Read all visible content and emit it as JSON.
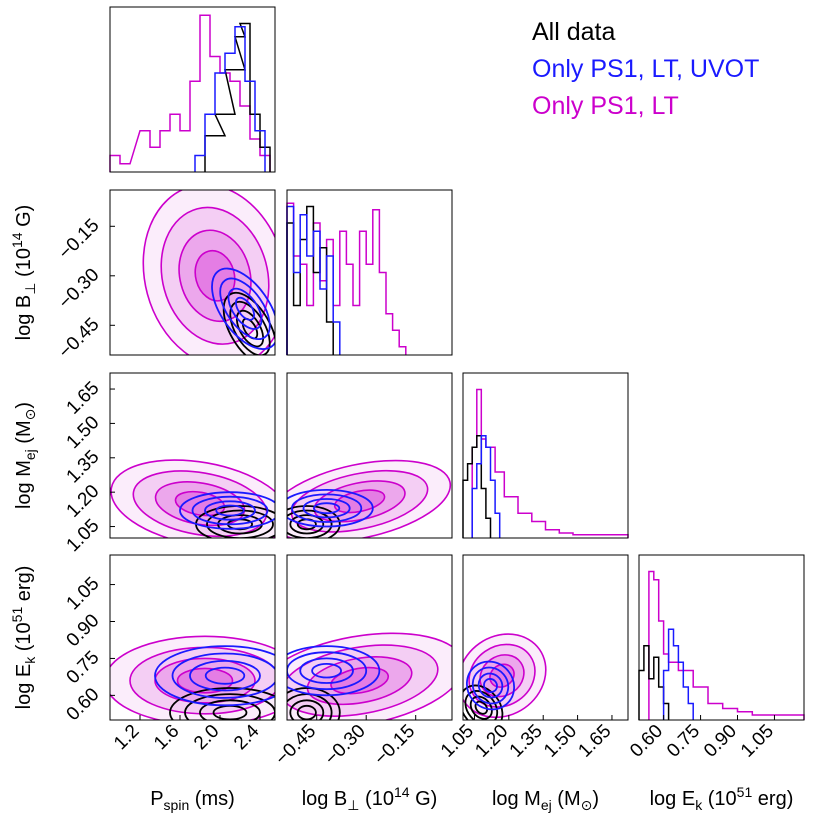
{
  "chart_data": {
    "type": "corner",
    "params": [
      {
        "id": "p",
        "label_main": "P",
        "label_sub": "spin",
        "label_tail": " (ms)",
        "range": [
          0.9,
          2.55
        ],
        "ticks": [
          1.2,
          1.6,
          2.0,
          2.4
        ],
        "tick_labels": [
          "1.2",
          "1.6",
          "2.0",
          "2.4"
        ]
      },
      {
        "id": "b",
        "label_main": "log B",
        "label_sub": "⊥",
        "label_tail": " (10",
        "label_sup": "14",
        "label_tail2": " G)",
        "range": [
          -0.54,
          -0.04
        ],
        "ticks": [
          -0.45,
          -0.3,
          -0.15
        ],
        "tick_labels": [
          "−0.45",
          "−0.30",
          "−0.15"
        ]
      },
      {
        "id": "m",
        "label_main": "log M",
        "label_sub": "ej",
        "label_tail": " (M",
        "label_sub2": "⊙",
        "label_tail2": ")",
        "range": [
          1.0,
          1.72
        ],
        "ticks": [
          1.05,
          1.2,
          1.35,
          1.5,
          1.65
        ],
        "tick_labels": [
          "1.05",
          "1.20",
          "1.35",
          "1.50",
          "1.65"
        ]
      },
      {
        "id": "e",
        "label_main": "log E",
        "label_sub": "k",
        "label_tail": " (10",
        "label_sup": "51",
        "label_tail2": " erg)",
        "range": [
          0.5,
          1.17
        ],
        "ticks": [
          0.6,
          0.75,
          0.9,
          1.05
        ],
        "tick_labels": [
          "0.60",
          "0.75",
          "0.90",
          "1.05"
        ]
      }
    ],
    "series": [
      {
        "name": "All data",
        "color": "#000000",
        "hist": {
          "p": [
            [
              1.85,
              2.05,
              0.22
            ],
            [
              1.95,
              2.15,
              0.35
            ],
            [
              2.05,
              2.25,
              0.62
            ],
            [
              2.15,
              2.25,
              0.82
            ],
            [
              2.2,
              2.3,
              0.9
            ],
            [
              2.3,
              2.4,
              0.35
            ],
            [
              2.4,
              2.5,
              0.15
            ]
          ],
          "b": [
            [
              -0.54,
              -0.52,
              0.8
            ],
            [
              -0.52,
              -0.5,
              0.3
            ],
            [
              -0.5,
              -0.48,
              0.7
            ],
            [
              -0.48,
              -0.46,
              0.9
            ],
            [
              -0.46,
              -0.44,
              0.5
            ],
            [
              -0.44,
              -0.42,
              0.65
            ],
            [
              -0.42,
              -0.4,
              0.2
            ]
          ],
          "m": [
            [
              1.0,
              1.02,
              0.35
            ],
            [
              1.02,
              1.04,
              0.45
            ],
            [
              1.04,
              1.06,
              0.55
            ],
            [
              1.06,
              1.08,
              0.62
            ],
            [
              1.08,
              1.1,
              0.3
            ],
            [
              1.1,
              1.12,
              0.12
            ]
          ],
          "e": [
            [
              0.5,
              0.52,
              0.3
            ],
            [
              0.52,
              0.54,
              0.45
            ],
            [
              0.54,
              0.56,
              0.25
            ],
            [
              0.56,
              0.58,
              0.38
            ],
            [
              0.58,
              0.6,
              0.2
            ],
            [
              0.6,
              0.62,
              0.1
            ]
          ]
        },
        "blobs": {
          "p|b": {
            "cx": [
              2.3,
              -0.46
            ],
            "s": [
              0.1,
              0.06
            ],
            "rot": 30
          },
          "p|m": {
            "cx": [
              2.2,
              1.06
            ],
            "s": [
              0.22,
              0.04
            ],
            "rot": 0
          },
          "b|m": {
            "cx": [
              -0.48,
              1.06
            ],
            "s": [
              0.05,
              0.04
            ],
            "rot": 0
          },
          "p|e": {
            "cx": [
              2.1,
              0.53
            ],
            "s": [
              0.3,
              0.05
            ],
            "rot": 0
          },
          "b|e": {
            "cx": [
              -0.48,
              0.53
            ],
            "s": [
              0.05,
              0.05
            ],
            "rot": 0
          },
          "m|e": {
            "cx": [
              1.08,
              0.55
            ],
            "s": [
              0.04,
              0.05
            ],
            "rot": 40
          }
        }
      },
      {
        "name": "Only PS1, LT, UVOT",
        "color": "#1a1aff",
        "hist": {
          "p": [
            [
              1.75,
              1.85,
              0.1
            ],
            [
              1.85,
              1.95,
              0.35
            ],
            [
              1.95,
              2.05,
              0.6
            ],
            [
              2.05,
              2.15,
              0.72
            ],
            [
              2.15,
              2.25,
              0.88
            ],
            [
              2.25,
              2.35,
              0.55
            ],
            [
              2.35,
              2.45,
              0.25
            ]
          ],
          "b": [
            [
              -0.54,
              -0.52,
              0.9
            ],
            [
              -0.52,
              -0.5,
              0.5
            ],
            [
              -0.5,
              -0.48,
              0.85
            ],
            [
              -0.48,
              -0.46,
              0.6
            ],
            [
              -0.46,
              -0.44,
              0.75
            ],
            [
              -0.44,
              -0.42,
              0.4
            ],
            [
              -0.42,
              -0.4,
              0.6
            ],
            [
              -0.4,
              -0.38,
              0.2
            ]
          ],
          "m": [
            [
              1.04,
              1.06,
              0.3
            ],
            [
              1.06,
              1.08,
              0.45
            ],
            [
              1.08,
              1.1,
              0.62
            ],
            [
              1.1,
              1.12,
              0.55
            ],
            [
              1.12,
              1.14,
              0.35
            ],
            [
              1.14,
              1.16,
              0.15
            ]
          ],
          "e": [
            [
              0.6,
              0.62,
              0.3
            ],
            [
              0.62,
              0.64,
              0.55
            ],
            [
              0.64,
              0.66,
              0.45
            ],
            [
              0.66,
              0.68,
              0.35
            ],
            [
              0.68,
              0.7,
              0.2
            ],
            [
              0.7,
              0.72,
              0.1
            ]
          ]
        },
        "blobs": {
          "p|b": {
            "cx": [
              2.25,
              -0.4
            ],
            "s": [
              0.12,
              0.07
            ],
            "rot": 35
          },
          "p|m": {
            "cx": [
              2.1,
              1.12
            ],
            "s": [
              0.25,
              0.04
            ],
            "rot": 0
          },
          "b|m": {
            "cx": [
              -0.42,
              1.13
            ],
            "s": [
              0.07,
              0.04
            ],
            "rot": 0
          },
          "p|e": {
            "cx": [
              2.05,
              0.68
            ],
            "s": [
              0.35,
              0.06
            ],
            "rot": 0
          },
          "b|e": {
            "cx": [
              -0.42,
              0.7
            ],
            "s": [
              0.08,
              0.05
            ],
            "rot": 0
          },
          "m|e": {
            "cx": [
              1.12,
              0.64
            ],
            "s": [
              0.05,
              0.05
            ],
            "rot": 40
          }
        }
      },
      {
        "name": "Only PS1, LT",
        "color": "#cc00cc",
        "hist": {
          "p": [
            [
              0.9,
              1.0,
              0.1
            ],
            [
              1.0,
              1.1,
              0.05
            ],
            [
              1.2,
              1.3,
              0.25
            ],
            [
              1.3,
              1.4,
              0.15
            ],
            [
              1.4,
              1.5,
              0.25
            ],
            [
              1.5,
              1.6,
              0.35
            ],
            [
              1.6,
              1.7,
              0.25
            ],
            [
              1.7,
              1.8,
              0.55
            ],
            [
              1.8,
              1.9,
              0.95
            ],
            [
              1.9,
              2.0,
              0.7
            ],
            [
              2.0,
              2.1,
              0.6
            ],
            [
              2.1,
              2.2,
              0.55
            ],
            [
              2.2,
              2.3,
              0.4
            ],
            [
              2.3,
              2.4,
              0.2
            ],
            [
              2.4,
              2.5,
              0.1
            ]
          ],
          "b": [
            [
              -0.54,
              -0.52,
              0.92
            ],
            [
              -0.52,
              -0.5,
              0.6
            ],
            [
              -0.5,
              -0.48,
              0.55
            ],
            [
              -0.48,
              -0.46,
              0.3
            ],
            [
              -0.46,
              -0.44,
              0.8
            ],
            [
              -0.44,
              -0.42,
              0.45
            ],
            [
              -0.42,
              -0.4,
              0.7
            ],
            [
              -0.4,
              -0.38,
              0.3
            ],
            [
              -0.38,
              -0.36,
              0.75
            ],
            [
              -0.36,
              -0.34,
              0.55
            ],
            [
              -0.34,
              -0.32,
              0.3
            ],
            [
              -0.32,
              -0.3,
              0.75
            ],
            [
              -0.3,
              -0.28,
              0.55
            ],
            [
              -0.28,
              -0.26,
              0.88
            ],
            [
              -0.26,
              -0.24,
              0.5
            ],
            [
              -0.24,
              -0.22,
              0.25
            ],
            [
              -0.22,
              -0.2,
              0.15
            ],
            [
              -0.2,
              -0.18,
              0.05
            ]
          ],
          "m": [
            [
              1.04,
              1.06,
              0.55
            ],
            [
              1.06,
              1.08,
              0.9
            ],
            [
              1.08,
              1.1,
              0.6
            ],
            [
              1.1,
              1.12,
              0.55
            ],
            [
              1.12,
              1.14,
              0.55
            ],
            [
              1.14,
              1.18,
              0.4
            ],
            [
              1.18,
              1.24,
              0.25
            ],
            [
              1.24,
              1.3,
              0.15
            ],
            [
              1.3,
              1.36,
              0.1
            ],
            [
              1.36,
              1.42,
              0.05
            ],
            [
              1.42,
              1.48,
              0.03
            ],
            [
              1.48,
              1.6,
              0.02
            ],
            [
              1.6,
              1.72,
              0.02
            ]
          ],
          "e": [
            [
              0.54,
              0.56,
              0.9
            ],
            [
              0.56,
              0.58,
              0.85
            ],
            [
              0.58,
              0.6,
              0.6
            ],
            [
              0.6,
              0.62,
              0.4
            ],
            [
              0.62,
              0.66,
              0.35
            ],
            [
              0.66,
              0.72,
              0.3
            ],
            [
              0.72,
              0.78,
              0.2
            ],
            [
              0.78,
              0.84,
              0.1
            ],
            [
              0.84,
              0.9,
              0.07
            ],
            [
              0.9,
              0.96,
              0.05
            ],
            [
              0.96,
              1.1,
              0.03
            ],
            [
              1.1,
              1.17,
              0.03
            ]
          ]
        },
        "blobs": {
          "p|b": {
            "cx": [
              1.95,
              -0.3
            ],
            "s": [
              0.35,
              0.14
            ],
            "rot": 15
          },
          "p|m": {
            "cx": [
              1.8,
              1.15
            ],
            "s": [
              0.45,
              0.09
            ],
            "rot": -10
          },
          "b|m": {
            "cx": [
              -0.32,
              1.16
            ],
            "s": [
              0.14,
              0.08
            ],
            "rot": 12
          },
          "p|e": {
            "cx": [
              1.85,
              0.66
            ],
            "s": [
              0.5,
              0.09
            ],
            "rot": 0
          },
          "b|e": {
            "cx": [
              -0.32,
              0.66
            ],
            "s": [
              0.16,
              0.09
            ],
            "rot": 10
          },
          "m|e": {
            "cx": [
              1.17,
              0.68
            ],
            "s": [
              0.1,
              0.08
            ],
            "rot": 35
          }
        }
      }
    ]
  }
}
